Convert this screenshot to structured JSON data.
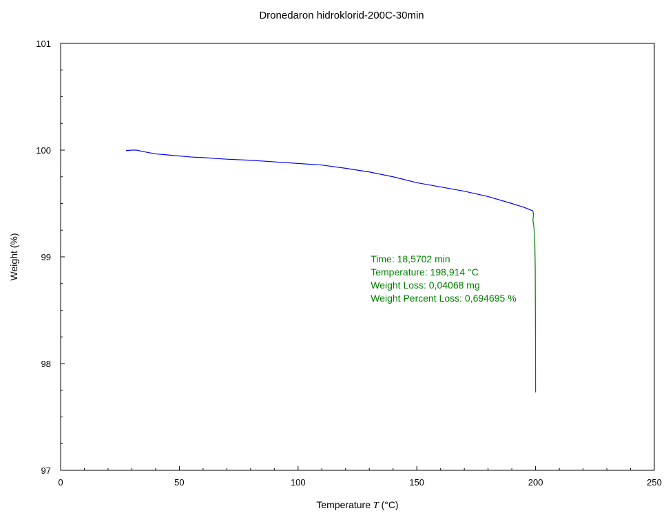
{
  "chart_data": {
    "type": "line",
    "title": "Dronedaron hidroklorid-200C-30min",
    "xlabel_prefix": "Temperature ",
    "xlabel_symbol": "T",
    "xlabel_unit": " (°C)",
    "ylabel": "Weight  (%)",
    "xlim": [
      0,
      250
    ],
    "ylim": [
      97,
      101
    ],
    "x_ticks": [
      0,
      50,
      100,
      150,
      200,
      250
    ],
    "y_ticks": [
      97,
      98,
      99,
      100,
      101
    ],
    "grid": false,
    "series": [
      {
        "color": "#0000ff",
        "points": [
          [
            27.5,
            99.995
          ],
          [
            30,
            100.0
          ],
          [
            32,
            100.0
          ],
          [
            35,
            99.985
          ],
          [
            40,
            99.965
          ],
          [
            45,
            99.955
          ],
          [
            50,
            99.945
          ],
          [
            55,
            99.935
          ],
          [
            60,
            99.93
          ],
          [
            70,
            99.915
          ],
          [
            80,
            99.905
          ],
          [
            90,
            99.89
          ],
          [
            100,
            99.875
          ],
          [
            110,
            99.86
          ],
          [
            120,
            99.83
          ],
          [
            130,
            99.795
          ],
          [
            140,
            99.75
          ],
          [
            150,
            99.695
          ],
          [
            160,
            99.655
          ],
          [
            170,
            99.615
          ],
          [
            180,
            99.565
          ],
          [
            190,
            99.5
          ],
          [
            195,
            99.465
          ],
          [
            198.9,
            99.43
          ]
        ]
      },
      {
        "color": "#008000",
        "points": [
          [
            198.9,
            99.43
          ],
          [
            199.1,
            99.4
          ],
          [
            198.9,
            99.34
          ],
          [
            199.3,
            99.28
          ],
          [
            199.5,
            99.2
          ],
          [
            199.7,
            99.12
          ],
          [
            199.85,
            98.9
          ],
          [
            199.95,
            98.3
          ],
          [
            200.0,
            97.73
          ]
        ]
      }
    ],
    "annotation": {
      "color": "#008000",
      "lines": [
        "Time: 18,5702 min",
        "Temperature: 198,914 °C",
        "Weight Loss: 0,04068 mg",
        "Weight Percent Loss: 0,694695 %"
      ],
      "x": 130,
      "y": 98.95
    }
  }
}
